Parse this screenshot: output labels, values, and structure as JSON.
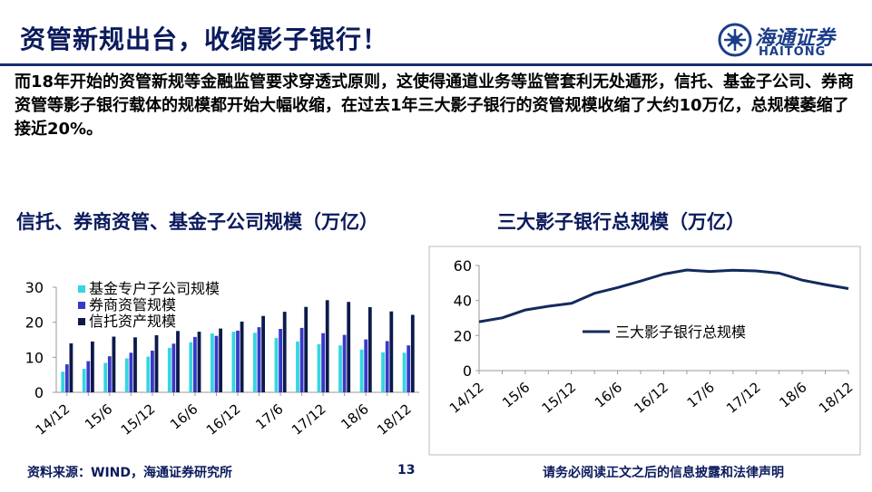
{
  "header": {
    "title": "资管新规出台，收缩影子银行！",
    "logo_text": "海通证券",
    "logo_sub": "HAITONG"
  },
  "intro": "而18年开始的资管新规等金融监管要求穿透式原则，这使得通道业务等监管套利无处遁形，信托、基金子公司、券商资管等影子银行载体的规模都开始大幅收缩，在过去1年三大影子银行的资管规模收缩了大约10万亿，总规模萎缩了接近20%。",
  "footer": {
    "source": "资料来源：WIND，海通证券研究所",
    "page": "13",
    "disclaimer": "请务必阅读正文之后的信息披露和法律声明"
  },
  "colors": {
    "fund": "#33d6e0",
    "broker": "#3a38c8",
    "trust": "#0b1a4a",
    "line": "#132a5c",
    "title": "#0a1a5c"
  },
  "chart_data": [
    {
      "type": "bar",
      "title": "信托、券商资管、基金子公司规模（万亿）",
      "ylim": [
        0,
        30
      ],
      "yticks": [
        0,
        10,
        20,
        30
      ],
      "xtick_labels": [
        "14/12",
        "15/6",
        "15/12",
        "16/6",
        "16/12",
        "17/6",
        "17/12",
        "18/6",
        "18/12"
      ],
      "categories": [
        "14/12",
        "15/3",
        "15/6",
        "15/9",
        "15/12",
        "16/3",
        "16/6",
        "16/9",
        "16/12",
        "17/3",
        "17/6",
        "17/9",
        "17/12",
        "18/3",
        "18/6",
        "18/9",
        "18/12"
      ],
      "legend_position": "top-left",
      "series": [
        {
          "name": "基金专户子公司规模",
          "values": [
            5.9,
            6.7,
            8.4,
            9.7,
            10.2,
            12.7,
            14.3,
            16.8,
            17.3,
            17.0,
            15.5,
            14.5,
            13.7,
            13.4,
            12.2,
            11.4,
            11.3
          ]
        },
        {
          "name": "券商资管规模",
          "values": [
            8.0,
            8.9,
            10.3,
            11.3,
            11.9,
            13.9,
            15.8,
            16.1,
            17.6,
            18.6,
            18.1,
            18.4,
            16.9,
            16.4,
            15.1,
            14.6,
            13.4
          ]
        },
        {
          "name": "信托资产规模",
          "values": [
            14.0,
            14.5,
            15.9,
            15.7,
            16.3,
            17.5,
            17.3,
            18.2,
            20.2,
            21.8,
            23.0,
            24.4,
            26.3,
            25.8,
            24.3,
            23.1,
            22.1
          ]
        }
      ]
    },
    {
      "type": "line",
      "title": "三大影子银行总规模（万亿）",
      "ylim": [
        0,
        60
      ],
      "yticks": [
        0,
        20,
        40,
        60
      ],
      "xtick_labels": [
        "14/12",
        "15/6",
        "15/12",
        "16/6",
        "16/12",
        "17/6",
        "17/12",
        "18/6",
        "18/12"
      ],
      "categories": [
        "14/12",
        "15/3",
        "15/6",
        "15/9",
        "15/12",
        "16/3",
        "16/6",
        "16/9",
        "16/12",
        "17/3",
        "17/6",
        "17/9",
        "17/12",
        "18/3",
        "18/6",
        "18/9",
        "18/12"
      ],
      "legend_position": "center",
      "series": [
        {
          "name": "三大影子银行总规模",
          "values": [
            27.9,
            30.1,
            34.6,
            36.7,
            38.4,
            44.1,
            47.4,
            51.1,
            55.1,
            57.4,
            56.6,
            57.3,
            56.9,
            55.6,
            51.6,
            49.1,
            46.8
          ]
        }
      ]
    }
  ]
}
